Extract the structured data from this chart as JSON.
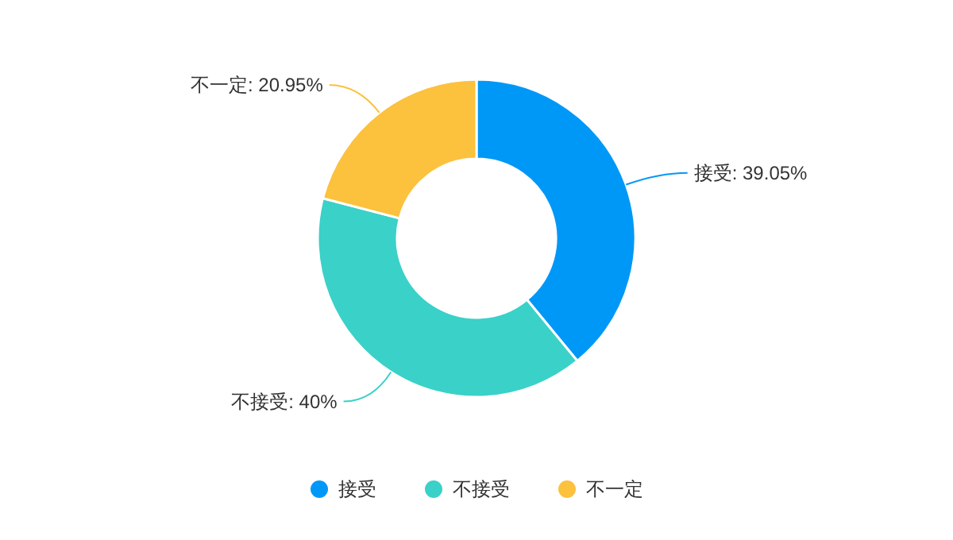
{
  "chart_data": {
    "type": "donut",
    "categories": [
      "接受",
      "不接受",
      "不一定"
    ],
    "values": [
      39.05,
      40,
      20.95
    ],
    "colors": [
      "#0098f7",
      "#3ad1c8",
      "#fcc13d"
    ],
    "value_labels": [
      "接受: 39.05%",
      "不接受: 40%",
      "不一定: 20.95%"
    ],
    "legend": "bottom"
  }
}
